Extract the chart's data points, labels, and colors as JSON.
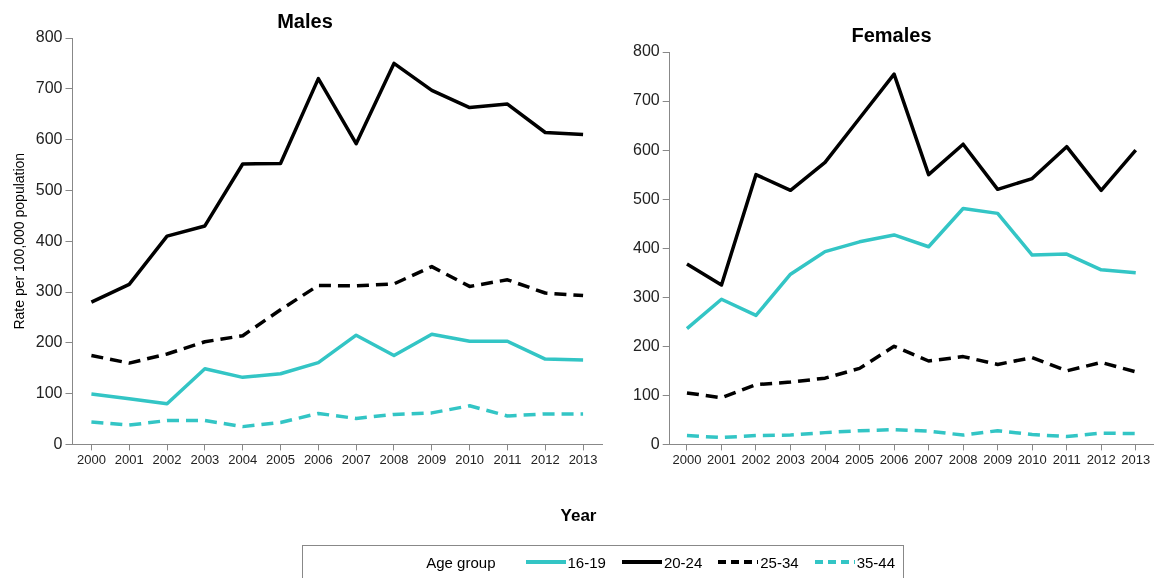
{
  "chart_data": [
    {
      "type": "line",
      "title": "Males",
      "legend": "bottom",
      "legend_title": "Age group",
      "xlabel": "Year",
      "ylabel": "Rate per 100,000 population",
      "categories": [
        "2000",
        "2001",
        "2002",
        "2003",
        "2004",
        "2005",
        "2006",
        "2007",
        "2008",
        "2009",
        "2010",
        "2011",
        "2012",
        "2013"
      ],
      "ylim": [
        0,
        800
      ],
      "yticks": [
        0,
        100,
        200,
        300,
        400,
        500,
        600,
        700,
        800
      ],
      "grid": false,
      "marker": "none",
      "series": [
        {
          "name": "16-19",
          "color": "#33c5c5",
          "line_style": "solid",
          "values": [
            99,
            90,
            80,
            149,
            132,
            139,
            161,
            215,
            175,
            217,
            203,
            203,
            168,
            166
          ]
        },
        {
          "name": "20-24",
          "color": "#000000",
          "line_style": "solid",
          "values": [
            280,
            315,
            410,
            430,
            552,
            553,
            720,
            592,
            750,
            697,
            663,
            670,
            614,
            610
          ]
        },
        {
          "name": "25-34",
          "color": "#000000",
          "line_style": "dashed",
          "values": [
            175,
            160,
            178,
            202,
            214,
            265,
            313,
            312,
            316,
            350,
            311,
            324,
            298,
            293
          ]
        },
        {
          "name": "35-44",
          "color": "#33c5c5",
          "line_style": "dashed",
          "values": [
            44,
            38,
            47,
            47,
            35,
            43,
            61,
            51,
            59,
            62,
            76,
            56,
            60,
            60
          ]
        }
      ]
    },
    {
      "type": "line",
      "title": "Females",
      "categories": [
        "2000",
        "2001",
        "2002",
        "2003",
        "2004",
        "2005",
        "2006",
        "2007",
        "2008",
        "2009",
        "2010",
        "2011",
        "2012",
        "2013"
      ],
      "ylim": [
        0,
        800
      ],
      "yticks": [
        0,
        100,
        200,
        300,
        400,
        500,
        600,
        700,
        800
      ],
      "grid": false,
      "marker": "none",
      "series": [
        {
          "color": "#33c5c5",
          "line_style": "solid",
          "values": [
            236,
            296,
            263,
            347,
            393,
            413,
            427,
            403,
            481,
            471,
            386,
            388,
            356,
            350
          ]
        },
        {
          "color": "#000000",
          "line_style": "solid",
          "values": [
            368,
            325,
            550,
            518,
            575,
            665,
            755,
            550,
            612,
            520,
            542,
            607,
            518,
            600
          ]
        },
        {
          "color": "#000000",
          "line_style": "dashed",
          "values": [
            105,
            95,
            122,
            127,
            135,
            155,
            200,
            170,
            179,
            163,
            177,
            150,
            167,
            148
          ]
        },
        {
          "color": "#33c5c5",
          "line_style": "dashed",
          "values": [
            18,
            14,
            18,
            19,
            24,
            28,
            30,
            27,
            19,
            28,
            20,
            16,
            23,
            22
          ]
        }
      ]
    }
  ]
}
